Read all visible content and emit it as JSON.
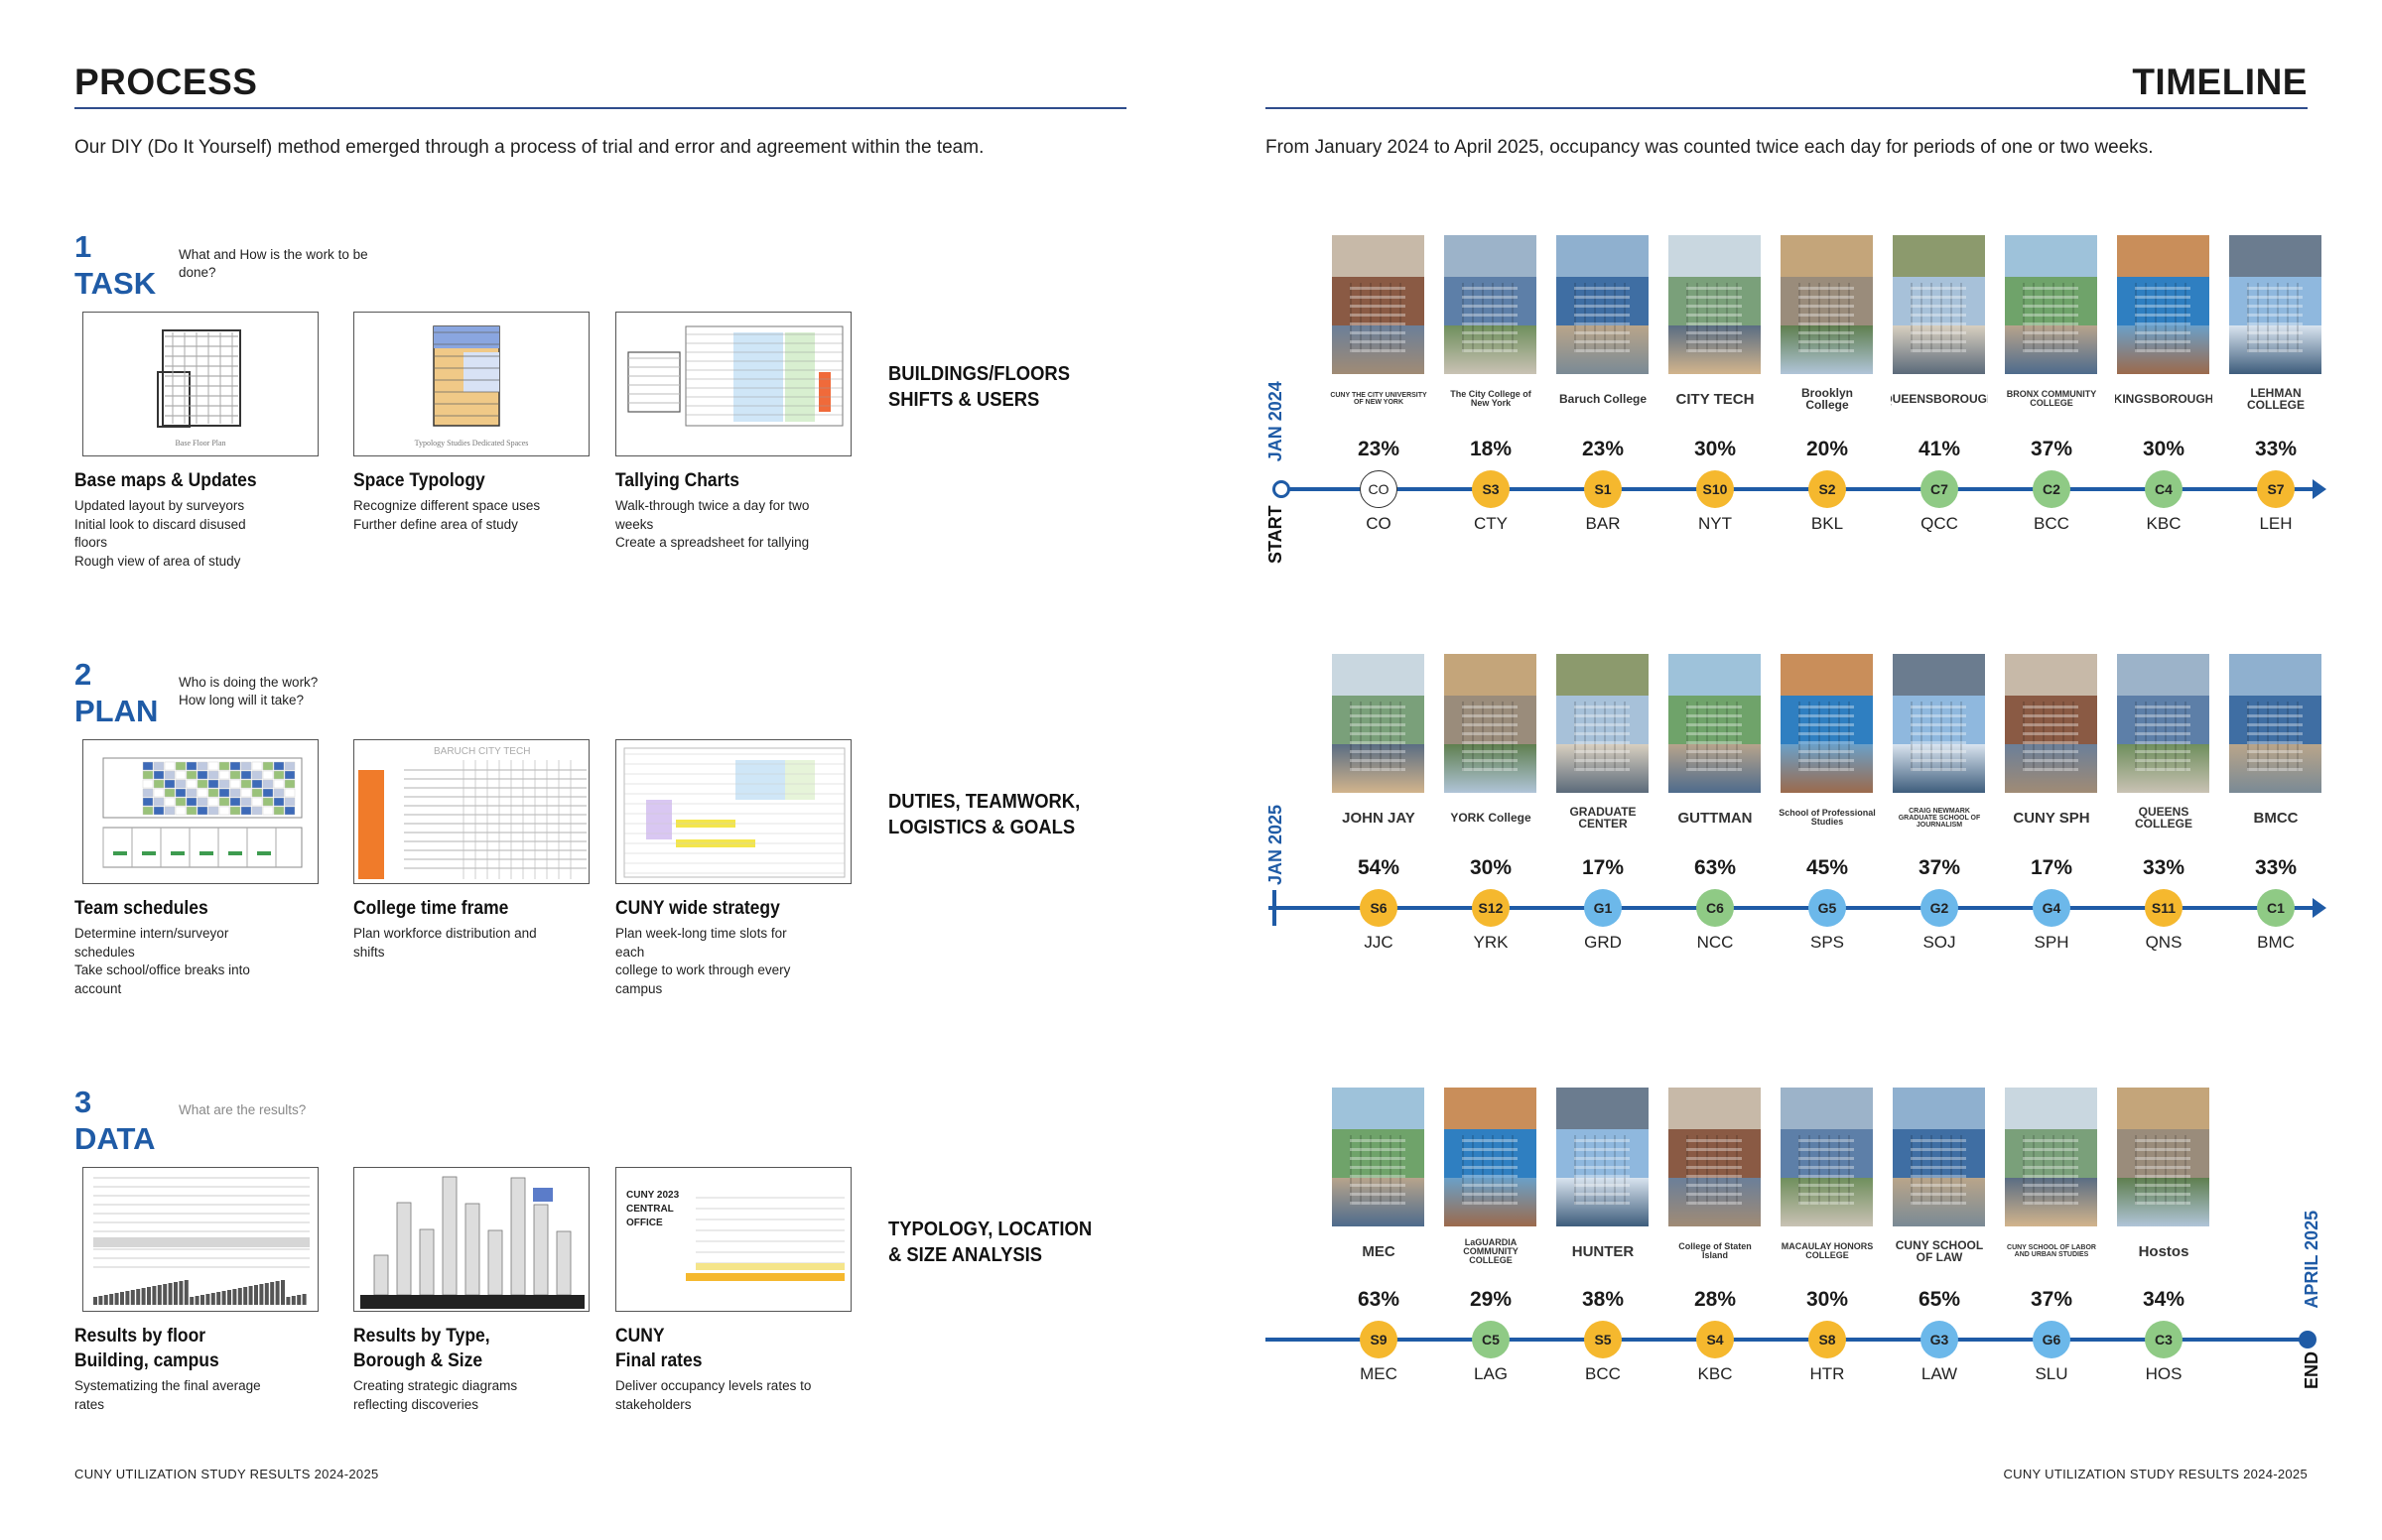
{
  "left": {
    "header": "PROCESS",
    "intro": "Our DIY (Do It Yourself) method emerged through a process of trial and error and agreement within the team.",
    "footer": "CUNY UTILIZATION STUDY RESULTS 2024-2025",
    "steps": [
      {
        "number": "1",
        "title": "TASK",
        "question_lines": [
          "What and How is the work to be",
          "done?"
        ],
        "side_label_lines": [
          "BUILDINGS/FLOORS",
          "SHIFTS & USERS"
        ],
        "items": [
          {
            "title_lines": [
              "Base maps & Updates"
            ],
            "desc_lines": [
              "Updated layout by surveyors",
              "Initial look to discard disused floors",
              "Rough view of area of study"
            ],
            "thumb_caption": "Base Floor Plan"
          },
          {
            "title_lines": [
              "Space Typology"
            ],
            "desc_lines": [
              "Recognize different space uses",
              "Further define area of study"
            ],
            "thumb_caption": "Typology Studies Dedicated Spaces"
          },
          {
            "title_lines": [
              "Tallying Charts"
            ],
            "desc_lines": [
              "Walk-through twice a day for two",
              "weeks",
              "Create a spreadsheet for tallying"
            ],
            "thumb_caption": ""
          }
        ]
      },
      {
        "number": "2",
        "title": "PLAN",
        "question_lines": [
          "Who is doing the work?",
          "How long will it take?"
        ],
        "side_label_lines": [
          "DUTIES, TEAMWORK,",
          "LOGISTICS & GOALS"
        ],
        "items": [
          {
            "title_lines": [
              "Team schedules"
            ],
            "desc_lines": [
              "Determine intern/surveyor",
              "schedules",
              "Take school/office breaks into",
              "account"
            ],
            "thumb_caption": ""
          },
          {
            "title_lines": [
              "College time frame"
            ],
            "desc_lines": [
              "Plan workforce distribution and",
              "shifts"
            ],
            "thumb_caption": "BARUCH     CITY TECH"
          },
          {
            "title_lines": [
              "CUNY wide strategy"
            ],
            "desc_lines": [
              "Plan week-long time slots for each",
              "college to work through every",
              "campus"
            ],
            "thumb_caption": ""
          }
        ]
      },
      {
        "number": "3",
        "title": "DATA",
        "question_lines": [
          "What are the results?"
        ],
        "side_label_lines": [
          "TYPOLOGY, LOCATION",
          "& SIZE ANALYSIS"
        ],
        "items": [
          {
            "title_lines": [
              "Results by floor",
              "Building, campus"
            ],
            "desc_lines": [
              "Systematizing the final average",
              "rates"
            ],
            "thumb_caption": ""
          },
          {
            "title_lines": [
              "Results by Type,",
              "Borough & Size"
            ],
            "desc_lines": [
              "Creating strategic diagrams",
              "reflecting discoveries"
            ],
            "thumb_caption": ""
          },
          {
            "title_lines": [
              "CUNY",
              "Final rates"
            ],
            "desc_lines": [
              "Deliver occupancy levels rates to",
              "stakeholders"
            ],
            "thumb_caption": "CUNY 2023 CENTRAL OFFICE"
          }
        ]
      }
    ]
  },
  "right": {
    "header": "TIMELINE",
    "intro": "From January 2024 to April 2025, occupancy was counted twice each day for periods of one or two weeks.",
    "footer": "CUNY UTILIZATION STUDY RESULTS 2024-2025",
    "markers": {
      "start_word": "START",
      "start_date": "JAN 2024",
      "mid_date": "JAN 2025",
      "end_word": "END",
      "end_date": "APRIL 2025"
    },
    "status_colors": {
      "yellow": "#f5b82e",
      "green": "#8fca85",
      "blue": "#6cb8ea",
      "outline": "#ffffff",
      "line": "#1f5ba6"
    },
    "rows": [
      {
        "colleges": [
          {
            "pct": "23%",
            "badge": "CO",
            "code": "CO",
            "color": "outline",
            "logo": "CUNY THE CITY UNIVERSITY OF NEW YORK"
          },
          {
            "pct": "18%",
            "badge": "S3",
            "code": "CTY",
            "color": "yellow",
            "logo": "The City College of New York"
          },
          {
            "pct": "23%",
            "badge": "S1",
            "code": "BAR",
            "color": "yellow",
            "logo": "Baruch College"
          },
          {
            "pct": "30%",
            "badge": "S10",
            "code": "NYT",
            "color": "yellow",
            "logo": "CITY TECH"
          },
          {
            "pct": "20%",
            "badge": "S2",
            "code": "BKL",
            "color": "yellow",
            "logo": "Brooklyn College"
          },
          {
            "pct": "41%",
            "badge": "C7",
            "code": "QCC",
            "color": "green",
            "logo": "QUEENSBOROUGH"
          },
          {
            "pct": "37%",
            "badge": "C2",
            "code": "BCC",
            "color": "green",
            "logo": "BRONX COMMUNITY COLLEGE"
          },
          {
            "pct": "30%",
            "badge": "C4",
            "code": "KBC",
            "color": "green",
            "logo": "KINGSBOROUGH"
          },
          {
            "pct": "33%",
            "badge": "S7",
            "code": "LEH",
            "color": "yellow",
            "logo": "LEHMAN COLLEGE"
          }
        ]
      },
      {
        "colleges": [
          {
            "pct": "54%",
            "badge": "S6",
            "code": "JJC",
            "color": "yellow",
            "logo": "JOHN JAY"
          },
          {
            "pct": "30%",
            "badge": "S12",
            "code": "YRK",
            "color": "yellow",
            "logo": "YORK College"
          },
          {
            "pct": "17%",
            "badge": "G1",
            "code": "GRD",
            "color": "blue",
            "logo": "GRADUATE CENTER"
          },
          {
            "pct": "63%",
            "badge": "C6",
            "code": "NCC",
            "color": "green",
            "logo": "GUTTMAN"
          },
          {
            "pct": "45%",
            "badge": "G5",
            "code": "SPS",
            "color": "blue",
            "logo": "School of Professional Studies"
          },
          {
            "pct": "37%",
            "badge": "G2",
            "code": "SOJ",
            "color": "blue",
            "logo": "CRAIG NEWMARK GRADUATE SCHOOL OF JOURNALISM"
          },
          {
            "pct": "17%",
            "badge": "G4",
            "code": "SPH",
            "color": "blue",
            "logo": "CUNY SPH"
          },
          {
            "pct": "33%",
            "badge": "S11",
            "code": "QNS",
            "color": "yellow",
            "logo": "QUEENS COLLEGE"
          },
          {
            "pct": "33%",
            "badge": "C1",
            "code": "BMC",
            "color": "green",
            "logo": "BMCC"
          }
        ]
      },
      {
        "colleges": [
          {
            "pct": "63%",
            "badge": "S9",
            "code": "MEC",
            "color": "yellow",
            "logo": "MEC"
          },
          {
            "pct": "29%",
            "badge": "C5",
            "code": "LAG",
            "color": "green",
            "logo": "LaGUARDIA COMMUNITY COLLEGE"
          },
          {
            "pct": "38%",
            "badge": "S5",
            "code": "BCC",
            "color": "yellow",
            "logo": "HUNTER"
          },
          {
            "pct": "28%",
            "badge": "S4",
            "code": "KBC",
            "color": "yellow",
            "logo": "College of Staten Island"
          },
          {
            "pct": "30%",
            "badge": "S8",
            "code": "HTR",
            "color": "yellow",
            "logo": "MACAULAY HONORS COLLEGE"
          },
          {
            "pct": "65%",
            "badge": "G3",
            "code": "LAW",
            "color": "blue",
            "logo": "CUNY SCHOOL OF LAW"
          },
          {
            "pct": "37%",
            "badge": "G6",
            "code": "SLU",
            "color": "blue",
            "logo": "CUNY SCHOOL OF LABOR AND URBAN STUDIES"
          },
          {
            "pct": "34%",
            "badge": "C3",
            "code": "HOS",
            "color": "green",
            "logo": "Hostos"
          }
        ]
      }
    ]
  }
}
